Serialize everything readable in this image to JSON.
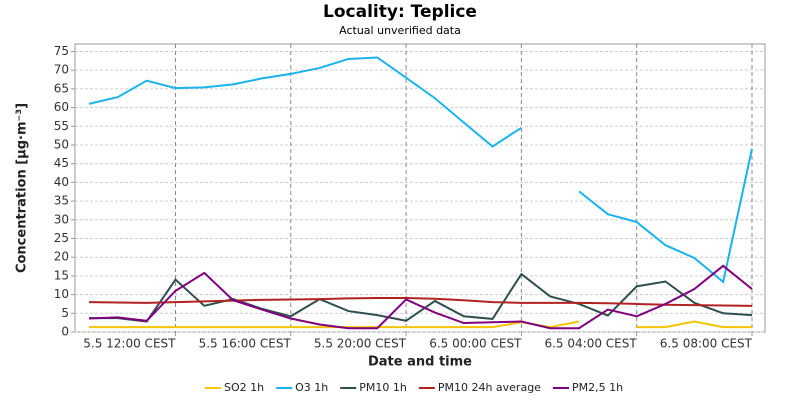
{
  "chart_data": {
    "type": "line",
    "title": "Locality: Teplice",
    "subtitle": "Actual unverified data",
    "x_label": "Date and time",
    "y_label": "Concentration [µg·m⁻³]",
    "categories": [
      null,
      null,
      null,
      "5.5 12:00 CEST",
      null,
      null,
      null,
      "5.5 16:00 CEST",
      null,
      null,
      null,
      "5.5 20:00 CEST",
      null,
      null,
      null,
      "6.5 00:00 CEST",
      null,
      null,
      null,
      "6.5 04:00 CEST",
      null,
      null,
      null,
      "6.5 08:00 CEST"
    ],
    "ylim": [
      0,
      77
    ],
    "yticks": [
      0,
      5,
      10,
      15,
      20,
      25,
      30,
      35,
      40,
      45,
      50,
      55,
      60,
      65,
      70,
      75
    ],
    "grid": true,
    "legend": "bottom",
    "series": [
      {
        "name": "SO2 1h",
        "color": "#f5c400",
        "values": [
          1.3,
          1.3,
          1.3,
          1.3,
          1.3,
          1.3,
          1.3,
          1.3,
          1.3,
          1.3,
          1.3,
          1.3,
          1.3,
          1.3,
          1.3,
          2.6,
          1.3,
          2.8,
          null,
          1.3,
          1.3,
          2.8,
          1.3,
          1.3
        ]
      },
      {
        "name": "O3 1h",
        "color": "#1ab3ec",
        "values": [
          61,
          62.8,
          67.2,
          65.2,
          65.4,
          66.2,
          67.8,
          69,
          70.6,
          73,
          73.4,
          68,
          62.5,
          56,
          49.6,
          54.6,
          null,
          37.6,
          31.5,
          29.4,
          23.2,
          19.8,
          13.4,
          49
        ]
      },
      {
        "name": "PM10 1h",
        "color": "#2f4f4f",
        "values": [
          3.7,
          3.7,
          2.8,
          14,
          7,
          8.8,
          6.2,
          4.2,
          8.8,
          5.6,
          4.5,
          3,
          8.3,
          4.2,
          3.5,
          15.5,
          9.5,
          7.5,
          4.4,
          12.2,
          13.5,
          7.8,
          5,
          4.5
        ]
      },
      {
        "name": "PM10 24h average",
        "color": "#b22222",
        "values": [
          8,
          7.9,
          7.8,
          8,
          8.2,
          8.4,
          8.6,
          8.7,
          8.8,
          9,
          9.1,
          9.1,
          8.9,
          8.5,
          8,
          7.8,
          7.8,
          7.8,
          7.7,
          7.5,
          7.3,
          7.2,
          7.1,
          7
        ]
      },
      {
        "name": "PM2,5 1h",
        "color": "#800080",
        "values": [
          3.6,
          3.9,
          3,
          11,
          15.8,
          8.5,
          6,
          3.6,
          2,
          1,
          1,
          8.7,
          5.2,
          2.4,
          2.6,
          2.8,
          1,
          1,
          6,
          4.2,
          7.5,
          11.5,
          17.7,
          11.5
        ]
      }
    ]
  }
}
